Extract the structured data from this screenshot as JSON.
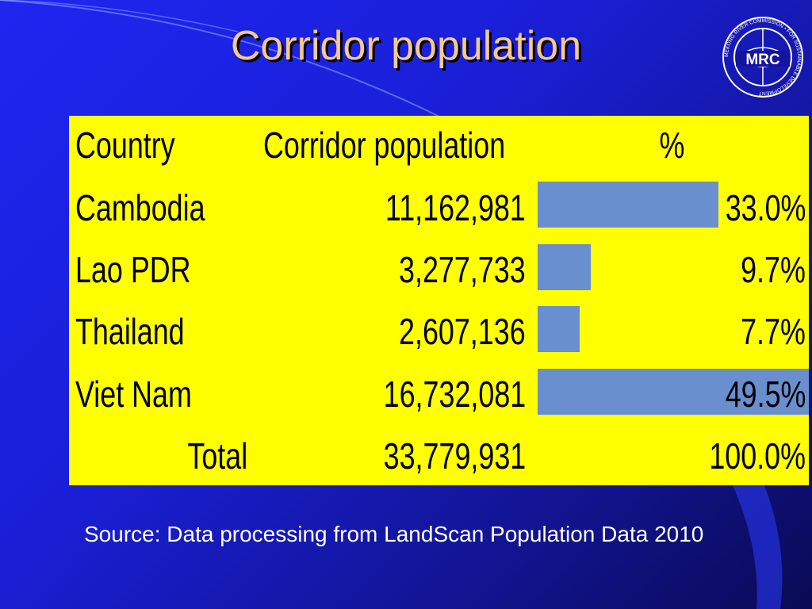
{
  "slide": {
    "title": "Corridor population",
    "source": "Source: Data processing from LandScan Population Data 2010"
  },
  "logo": {
    "text": "MRC",
    "ring_text": "MEKONG RIVER COMMISSION • FOR SUSTAINABLE DEVELOPMENT"
  },
  "table": {
    "headers": [
      "Country",
      "Corridor population",
      "%"
    ],
    "rows": [
      {
        "country": "Cambodia",
        "population": "11,162,981",
        "percent": "33.0%",
        "share": 33.0
      },
      {
        "country": "Lao PDR",
        "population": "3,277,733",
        "percent": "9.7%",
        "share": 9.7
      },
      {
        "country": "Thailand",
        "population": "2,607,136",
        "percent": "7.7%",
        "share": 7.7
      },
      {
        "country": "Viet Nam",
        "population": "16,732,081",
        "percent": "49.5%",
        "share": 49.5
      }
    ],
    "total": {
      "label": "Total",
      "population": "33,779,931",
      "percent": "100.0%"
    }
  },
  "colors": {
    "background": "#1f26f0",
    "title": "#f7c98a",
    "table_bg": "#ffff00",
    "bar": "#6a8fcf",
    "source_text": "#ffffff"
  }
}
